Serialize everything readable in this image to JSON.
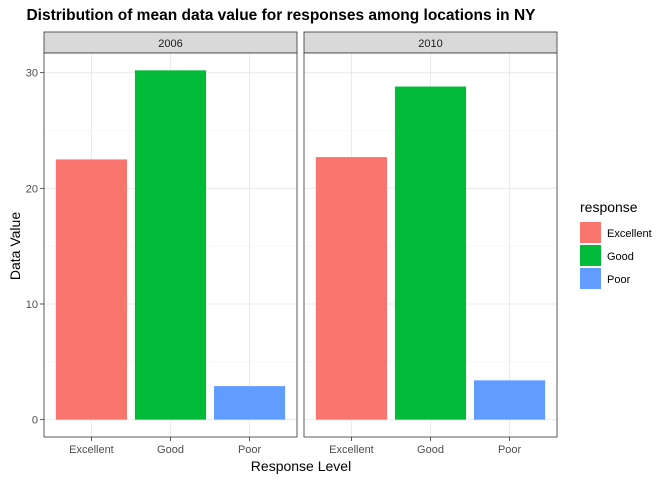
{
  "chart_data": {
    "type": "bar",
    "title": "Distribution of mean data value for responses among locations in NY",
    "xlabel": "Response Level",
    "ylabel": "Data Value",
    "categories": [
      "Excellent",
      "Good",
      "Poor"
    ],
    "ylim": [
      -1.5,
      31.7
    ],
    "yticks": [
      0,
      10,
      20,
      30
    ],
    "grid": true,
    "legend_position": "right",
    "legend": {
      "title": "response",
      "entries": [
        "Excellent",
        "Good",
        "Poor"
      ]
    },
    "colors": {
      "Excellent": "#F8766D",
      "Good": "#00BA38",
      "Poor": "#619CFF"
    },
    "facets": [
      {
        "label": "2006",
        "values": [
          22.5,
          30.2,
          2.9
        ]
      },
      {
        "label": "2010",
        "values": [
          22.7,
          28.8,
          3.4
        ]
      }
    ]
  }
}
